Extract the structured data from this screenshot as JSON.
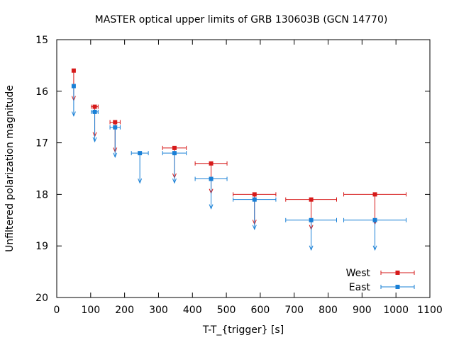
{
  "chart_data": {
    "type": "scatter",
    "title": "MASTER optical upper limits of GRB 130603B (GCN  14770)",
    "xlabel": "T-T_{trigger} [s]",
    "ylabel": "Unfiltered polarization magnitude",
    "xlim": [
      0,
      1100
    ],
    "ylim": [
      20,
      15
    ],
    "y_inverted": true,
    "x_ticks": [
      0,
      100,
      200,
      300,
      400,
      500,
      600,
      700,
      800,
      900,
      1000,
      1100
    ],
    "y_ticks": [
      15,
      16,
      17,
      18,
      19,
      20
    ],
    "grid": false,
    "legend_position": "bottom-right",
    "upper_limits": true,
    "series": [
      {
        "name": "West",
        "color": "#d61a1a",
        "points": [
          {
            "x": 50,
            "y": 15.6,
            "xerr": 0
          },
          {
            "x": 112,
            "y": 16.3,
            "xerr": 10
          },
          {
            "x": 172,
            "y": 16.6,
            "xerr": 15
          },
          {
            "x": 347,
            "y": 17.1,
            "xerr": 35
          },
          {
            "x": 455,
            "y": 17.4,
            "xerr": 47
          },
          {
            "x": 583,
            "y": 18.0,
            "xerr": 63
          },
          {
            "x": 750,
            "y": 18.1,
            "xerr": 75
          },
          {
            "x": 938,
            "y": 18.0,
            "xerr": 92
          }
        ]
      },
      {
        "name": "East",
        "color": "#1a80d6",
        "points": [
          {
            "x": 50,
            "y": 15.9,
            "xerr": 0
          },
          {
            "x": 112,
            "y": 16.4,
            "xerr": 10
          },
          {
            "x": 172,
            "y": 16.7,
            "xerr": 15
          },
          {
            "x": 245,
            "y": 17.2,
            "xerr": 25
          },
          {
            "x": 347,
            "y": 17.2,
            "xerr": 35
          },
          {
            "x": 455,
            "y": 17.7,
            "xerr": 47
          },
          {
            "x": 583,
            "y": 18.1,
            "xerr": 63
          },
          {
            "x": 750,
            "y": 18.5,
            "xerr": 75
          },
          {
            "x": 938,
            "y": 18.5,
            "xerr": 92
          }
        ]
      }
    ]
  }
}
